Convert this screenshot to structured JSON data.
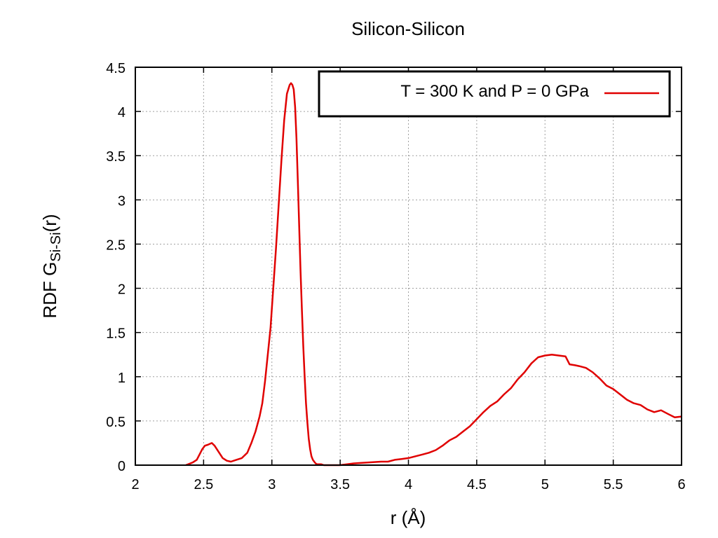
{
  "chart_data": {
    "type": "line",
    "title": "Silicon-Silicon",
    "xlabel": "r (Å)",
    "ylabel": "RDF G",
    "ylabel_subscript": "Si-Si",
    "ylabel_suffix": "(r)",
    "xlim": [
      2,
      6
    ],
    "ylim": [
      0,
      4.5
    ],
    "xticks": [
      2,
      2.5,
      3,
      3.5,
      4,
      4.5,
      5,
      5.5,
      6
    ],
    "xtick_labels": [
      "2",
      "2.5",
      "3",
      "3.5",
      "4",
      "4.5",
      "5",
      "5.5",
      "6"
    ],
    "yticks": [
      0,
      0.5,
      1,
      1.5,
      2,
      2.5,
      3,
      3.5,
      4,
      4.5
    ],
    "ytick_labels": [
      "0",
      "0.5",
      "1",
      "1.5",
      "2",
      "2.5",
      "3",
      "3.5",
      "4",
      "4.5"
    ],
    "grid": true,
    "legend_position": "top-right",
    "series": [
      {
        "name": "T = 300 K and P = 0 GPa",
        "color": "#e00000",
        "x": [
          2.37,
          2.42,
          2.45,
          2.47,
          2.49,
          2.51,
          2.53,
          2.56,
          2.58,
          2.61,
          2.64,
          2.67,
          2.7,
          2.74,
          2.78,
          2.82,
          2.85,
          2.88,
          2.91,
          2.93,
          2.95,
          2.97,
          2.99,
          3.01,
          3.03,
          3.05,
          3.07,
          3.09,
          3.11,
          3.13,
          3.14,
          3.15,
          3.16,
          3.17,
          3.18,
          3.19,
          3.2,
          3.21,
          3.22,
          3.23,
          3.24,
          3.25,
          3.26,
          3.27,
          3.28,
          3.29,
          3.3,
          3.31,
          3.32,
          3.33,
          3.34,
          3.36,
          3.38,
          3.4,
          3.43,
          3.46,
          3.5,
          3.55,
          3.6,
          3.7,
          3.8,
          3.85,
          3.9,
          3.95,
          4.0,
          4.05,
          4.1,
          4.15,
          4.2,
          4.25,
          4.3,
          4.35,
          4.4,
          4.45,
          4.5,
          4.55,
          4.6,
          4.65,
          4.7,
          4.75,
          4.8,
          4.85,
          4.9,
          4.95,
          5.0,
          5.05,
          5.1,
          5.15,
          5.18,
          5.22,
          5.25,
          5.3,
          5.35,
          5.4,
          5.45,
          5.5,
          5.55,
          5.6,
          5.65,
          5.7,
          5.75,
          5.8,
          5.85,
          5.9,
          5.95,
          6.0
        ],
        "y": [
          0.0,
          0.03,
          0.06,
          0.12,
          0.18,
          0.22,
          0.23,
          0.25,
          0.22,
          0.15,
          0.08,
          0.05,
          0.04,
          0.06,
          0.08,
          0.14,
          0.25,
          0.38,
          0.55,
          0.7,
          0.95,
          1.25,
          1.55,
          2.0,
          2.45,
          2.95,
          3.45,
          3.9,
          4.2,
          4.3,
          4.32,
          4.3,
          4.25,
          4.05,
          3.7,
          3.2,
          2.7,
          2.2,
          1.75,
          1.35,
          1.0,
          0.7,
          0.48,
          0.3,
          0.18,
          0.1,
          0.06,
          0.04,
          0.02,
          0.01,
          0.01,
          0.01,
          0.0,
          0.0,
          0.0,
          0.0,
          0.0,
          0.01,
          0.02,
          0.03,
          0.04,
          0.04,
          0.06,
          0.07,
          0.08,
          0.1,
          0.12,
          0.14,
          0.17,
          0.22,
          0.28,
          0.32,
          0.38,
          0.44,
          0.52,
          0.6,
          0.67,
          0.72,
          0.8,
          0.87,
          0.97,
          1.05,
          1.15,
          1.22,
          1.24,
          1.25,
          1.24,
          1.23,
          1.14,
          1.13,
          1.12,
          1.1,
          1.05,
          0.98,
          0.9,
          0.86,
          0.8,
          0.74,
          0.7,
          0.68,
          0.63,
          0.6,
          0.62,
          0.58,
          0.54,
          0.55
        ]
      }
    ]
  }
}
